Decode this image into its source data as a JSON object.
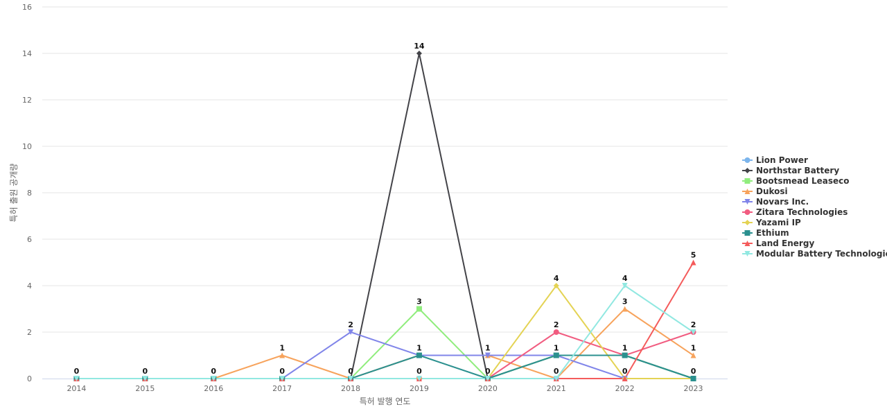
{
  "chart_data": {
    "type": "line",
    "xlabel": "특허 발행 연도",
    "ylabel": "특허 출원 공개량",
    "x": [
      "2014",
      "2015",
      "2016",
      "2017",
      "2018",
      "2019",
      "2020",
      "2021",
      "2022",
      "2023"
    ],
    "ylim": [
      0,
      16
    ],
    "yticks": [
      0,
      2,
      4,
      6,
      8,
      10,
      12,
      14,
      16
    ],
    "grid": true,
    "legend_position": "right",
    "series": [
      {
        "name": "Lion Power",
        "color": "#7cb5ec",
        "marker": "circle",
        "values": [
          0,
          0,
          0,
          0,
          0,
          0,
          0,
          0,
          0,
          0
        ]
      },
      {
        "name": "Northstar Battery",
        "color": "#434348",
        "marker": "diamond",
        "values": [
          0,
          0,
          0,
          0,
          0,
          14,
          0,
          1,
          1,
          0
        ]
      },
      {
        "name": "Bootsmead Leaseco",
        "color": "#90ed7d",
        "marker": "square",
        "values": [
          0,
          0,
          0,
          0,
          0,
          3,
          0,
          1,
          1,
          0
        ]
      },
      {
        "name": "Dukosi",
        "color": "#f7a35c",
        "marker": "triangle",
        "values": [
          0,
          0,
          0,
          1,
          0,
          1,
          1,
          0,
          3,
          1
        ]
      },
      {
        "name": "Novars Inc.",
        "color": "#8085e9",
        "marker": "triangle-down",
        "values": [
          0,
          0,
          0,
          0,
          2,
          1,
          1,
          1,
          0,
          0
        ]
      },
      {
        "name": "Zitara Technologies",
        "color": "#f15c80",
        "marker": "circle",
        "values": [
          0,
          0,
          0,
          0,
          0,
          0,
          0,
          2,
          1,
          2
        ]
      },
      {
        "name": "Yazami IP",
        "color": "#e4d354",
        "marker": "diamond",
        "values": [
          0,
          0,
          0,
          0,
          0,
          0,
          0,
          4,
          0,
          0
        ]
      },
      {
        "name": "Ethium",
        "color": "#2b908f",
        "marker": "square",
        "values": [
          0,
          0,
          0,
          0,
          0,
          1,
          0,
          1,
          1,
          0
        ]
      },
      {
        "name": "Land Energy",
        "color": "#f45b5b",
        "marker": "triangle",
        "values": [
          0,
          0,
          0,
          0,
          0,
          0,
          0,
          0,
          0,
          5
        ]
      },
      {
        "name": "Modular Battery Technologies",
        "color": "#91e8e1",
        "marker": "triangle-down",
        "values": [
          0,
          0,
          0,
          0,
          0,
          0,
          0,
          0,
          4,
          2
        ]
      }
    ],
    "data_labels": [
      {
        "x": "2014",
        "text": "0",
        "y": 0
      },
      {
        "x": "2015",
        "text": "0",
        "y": 0
      },
      {
        "x": "2016",
        "text": "0",
        "y": 0
      },
      {
        "x": "2017",
        "text": "1",
        "y": 1
      },
      {
        "x": "2017",
        "text": "0",
        "y": 0
      },
      {
        "x": "2018",
        "text": "2",
        "y": 2
      },
      {
        "x": "2018",
        "text": "0",
        "y": 0
      },
      {
        "x": "2019",
        "text": "14",
        "y": 14
      },
      {
        "x": "2019",
        "text": "3",
        "y": 3
      },
      {
        "x": "2019",
        "text": "1",
        "y": 1
      },
      {
        "x": "2019",
        "text": "0",
        "y": 0
      },
      {
        "x": "2020",
        "text": "1",
        "y": 1
      },
      {
        "x": "2020",
        "text": "0",
        "y": 0
      },
      {
        "x": "2021",
        "text": "4",
        "y": 4
      },
      {
        "x": "2021",
        "text": "2",
        "y": 2
      },
      {
        "x": "2021",
        "text": "1",
        "y": 1
      },
      {
        "x": "2021",
        "text": "0",
        "y": 0
      },
      {
        "x": "2022",
        "text": "4",
        "y": 4
      },
      {
        "x": "2022",
        "text": "3",
        "y": 3
      },
      {
        "x": "2022",
        "text": "1",
        "y": 1
      },
      {
        "x": "2022",
        "text": "0",
        "y": 0
      },
      {
        "x": "2023",
        "text": "5",
        "y": 5
      },
      {
        "x": "2023",
        "text": "2",
        "y": 2
      },
      {
        "x": "2023",
        "text": "1",
        "y": 1
      },
      {
        "x": "2023",
        "text": "0",
        "y": 0
      }
    ]
  }
}
